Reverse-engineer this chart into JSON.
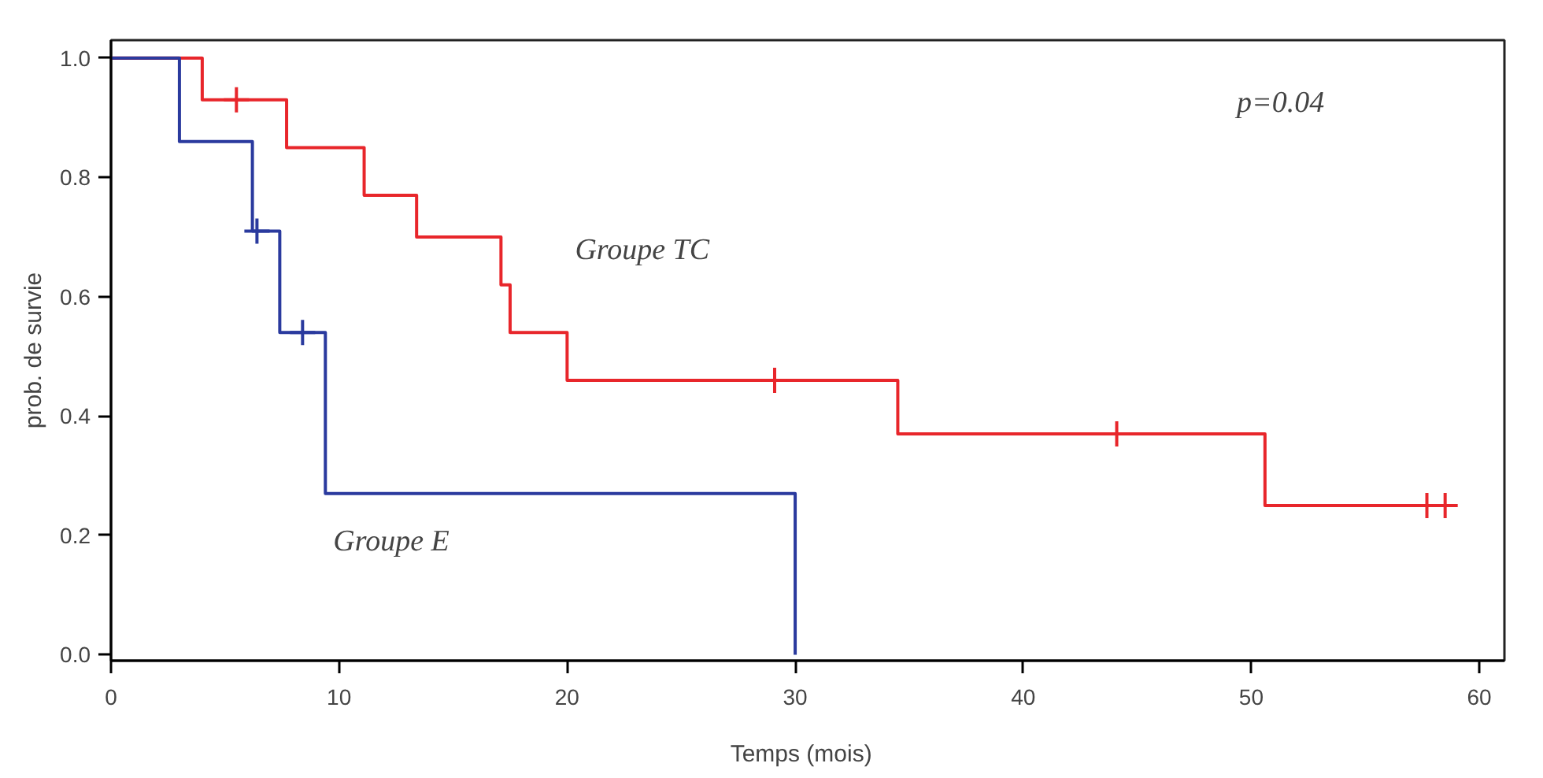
{
  "chart_data": {
    "type": "step",
    "xlabel": "Temps   (mois)",
    "ylabel": "prob. de survie",
    "xlim": [
      0,
      61.1
    ],
    "ylim": [
      -0.01,
      1.03
    ],
    "xticks": [
      0,
      10,
      20,
      30,
      40,
      50,
      60
    ],
    "yticks": [
      {
        "value": 0,
        "label": "0.0"
      },
      {
        "value": 0.2,
        "label": "0.2"
      },
      {
        "value": 0.4,
        "label": "0.4"
      },
      {
        "value": 0.6,
        "label": "0.6"
      },
      {
        "value": 0.8,
        "label": "0.8"
      },
      {
        "value": 1,
        "label": "1.0"
      }
    ],
    "grid": false,
    "series": [
      {
        "name": "Groupe TC",
        "color": "#e8262b",
        "x": [
          0,
          4.0,
          7.7,
          11.1,
          13.4,
          17.1,
          17.5,
          20.0,
          34.5,
          50.6,
          59.0
        ],
        "values": [
          1,
          0.93,
          0.85,
          0.77,
          0.7,
          0.62,
          0.54,
          0.46,
          0.37,
          0.25,
          0.25
        ]
      },
      {
        "name": "Groupe E",
        "color": "#2a3a9e",
        "x": [
          0,
          3.0,
          6.2,
          7.4,
          9.4,
          30
        ],
        "values": [
          1,
          0.86,
          0.71,
          0.54,
          0.27,
          0
        ]
      },
      {
        "type": "scatter",
        "marker": "cross",
        "color": "#e8262b",
        "x": [
          5.5,
          29.1,
          44.1,
          57.7,
          58.5
        ],
        "values": [
          0.93,
          0.46,
          0.37,
          0.25,
          0.25
        ]
      },
      {
        "type": "scatter",
        "marker": "cross",
        "color": "#2a3a9e",
        "x": [
          6.4,
          8.4
        ],
        "values": [
          0.71,
          0.54
        ]
      }
    ],
    "annotations": [
      "p=0.04"
    ]
  }
}
